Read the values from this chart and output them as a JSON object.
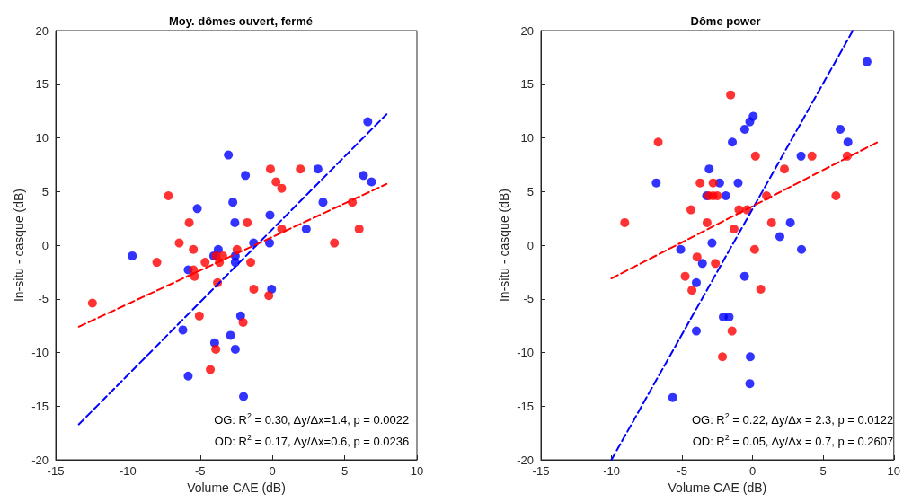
{
  "chart_data": [
    {
      "type": "scatter",
      "title": "Moy. dômes ouvert, fermé",
      "xlabel": "Volume CAE (dB)",
      "ylabel": "In-situ - casque (dB)",
      "xlim": [
        -15,
        10
      ],
      "xticks": [
        -15,
        -10,
        -5,
        0,
        5,
        10
      ],
      "ylim": [
        -20,
        20
      ],
      "yticks": [
        -20,
        -15,
        -10,
        -5,
        0,
        5,
        10,
        15,
        20
      ],
      "grid": false,
      "marker": "circle",
      "annotations": [
        "OG: R$^{2}$ = 0.30, Δy/Δx=1.4, p = 0.0022",
        "OD: R$^{2}$ = 0.17, Δy/Δx=0.6, p = 0.0236"
      ],
      "series": [
        {
          "color": "#0000ff",
          "x": [
            -3.05,
            -2.74,
            -5.2,
            -2.6,
            -9.7,
            -3.75,
            -4.06,
            -5.83,
            -2.57,
            -2.57,
            -2.2,
            -6.2,
            -2.9,
            -4.0,
            -2.57,
            -5.83,
            -1.87,
            6.6,
            3.15,
            6.3,
            6.86,
            3.5,
            -0.17,
            2.34,
            -1.3,
            -0.2,
            -0.06,
            -2.0
          ],
          "values": [
            8.4,
            4.0,
            3.4,
            2.1,
            -1.0,
            -0.4,
            -1.0,
            -2.3,
            -1.0,
            -1.6,
            -6.6,
            -7.9,
            -8.4,
            -9.1,
            -9.7,
            -12.2,
            6.5,
            11.5,
            7.1,
            6.5,
            5.9,
            4.0,
            2.8,
            1.5,
            0.2,
            0.2,
            -4.1,
            -14.1
          ]
        },
        {
          "color": "#ff0000",
          "x": [
            -7.2,
            -5.76,
            -6.45,
            -5.47,
            -8.0,
            -4.66,
            -3.9,
            -3.44,
            -3.67,
            -2.45,
            -5.47,
            -5.39,
            -3.8,
            -12.46,
            -5.06,
            -3.92,
            -4.3,
            -0.14,
            1.93,
            0.25,
            0.64,
            5.53,
            -1.74,
            0.64,
            6.0,
            4.29,
            -1.5,
            -1.29,
            -0.25,
            -2.03
          ],
          "values": [
            4.6,
            2.1,
            0.2,
            -0.4,
            -1.6,
            -1.6,
            -1.0,
            -1.0,
            -1.6,
            -0.4,
            -2.3,
            -2.9,
            -3.5,
            -5.4,
            -6.6,
            -9.7,
            -11.6,
            7.1,
            7.1,
            5.9,
            5.3,
            4.0,
            2.1,
            1.5,
            1.5,
            0.2,
            -1.6,
            -4.1,
            -4.7,
            -7.2
          ]
        },
        {
          "type": "line",
          "color": "#0000ff",
          "marker": "none",
          "line_style": "dashed",
          "x": [
            -13.4,
            7.9
          ],
          "values": [
            -16.7,
            12.2
          ]
        },
        {
          "type": "line",
          "color": "#ff0000",
          "marker": "none",
          "line_style": "dashed",
          "x": [
            -13.4,
            7.9
          ],
          "values": [
            -7.6,
            5.7
          ]
        }
      ]
    },
    {
      "type": "scatter",
      "title": "Dôme power",
      "xlabel": "Volume CAE (dB)",
      "ylabel": "In-situ - casque (dB)",
      "xlim": [
        -15,
        10
      ],
      "xticks": [
        -15,
        -10,
        -5,
        0,
        5,
        10
      ],
      "ylim": [
        -20,
        20
      ],
      "yticks": [
        -20,
        -15,
        -10,
        -5,
        0,
        5,
        10,
        15,
        20
      ],
      "grid": false,
      "marker": "circle",
      "annotations": [
        "OG: R$^{2}$ = 0.22, Δy/Δx = 2.3, p = 0.0122",
        "OD: R$^{2}$ = 0.05, Δy/Δx = 0.7, p = 0.2607"
      ],
      "series": [
        {
          "color": "#0000ff",
          "x": [
            0.04,
            -0.2,
            -0.56,
            -1.44,
            -3.08,
            -6.83,
            -2.34,
            -1.03,
            -3.26,
            -1.9,
            -2.88,
            -5.1,
            -3.56,
            -0.57,
            -3.99,
            -2.08,
            -1.67,
            -3.99,
            -0.17,
            -0.2,
            -5.66,
            8.1,
            6.2,
            6.75,
            3.43,
            2.67,
            1.93,
            3.46
          ],
          "values": [
            12.0,
            11.5,
            10.8,
            9.6,
            7.1,
            5.8,
            5.8,
            5.8,
            4.6,
            4.6,
            0.2,
            -0.4,
            -1.7,
            -2.9,
            -3.5,
            -6.7,
            -6.7,
            -8.0,
            -10.4,
            -12.9,
            -14.2,
            17.1,
            10.8,
            9.6,
            8.3,
            2.1,
            0.8,
            -0.4
          ]
        },
        {
          "color": "#ff0000",
          "x": [
            -1.56,
            -6.69,
            0.2,
            -3.72,
            -2.8,
            -3.1,
            -2.8,
            -2.5,
            -4.37,
            -0.97,
            -0.4,
            -9.06,
            -3.23,
            -1.32,
            0.14,
            -3.94,
            -2.64,
            -4.78,
            -4.3,
            -1.46,
            -2.14,
            4.2,
            6.7,
            2.25,
            0.98,
            5.9,
            1.34,
            0.57
          ],
          "values": [
            14.0,
            9.6,
            8.3,
            5.8,
            5.8,
            4.6,
            4.6,
            4.6,
            3.3,
            3.3,
            3.3,
            2.1,
            2.1,
            1.5,
            -0.4,
            -1.1,
            -1.7,
            -2.9,
            -4.2,
            -8.0,
            -10.4,
            8.3,
            8.3,
            7.1,
            4.6,
            4.6,
            2.1,
            -4.1
          ]
        },
        {
          "type": "line",
          "color": "#0000ff",
          "marker": "none",
          "line_style": "dashed",
          "x": [
            -10,
            7.1
          ],
          "values": [
            -20,
            20
          ]
        },
        {
          "type": "line",
          "color": "#ff0000",
          "marker": "none",
          "line_style": "dashed",
          "x": [
            -10,
            9
          ],
          "values": [
            -3.1,
            9.7
          ]
        }
      ]
    }
  ]
}
